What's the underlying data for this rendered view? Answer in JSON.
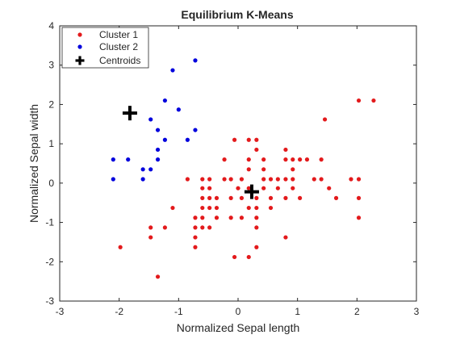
{
  "chart_data": {
    "type": "scatter",
    "title": "Equilibrium K-Means",
    "xlabel": "Normalized Sepal length",
    "ylabel": "Normalized Sepal width",
    "xlim": [
      -3,
      3
    ],
    "ylim": [
      -3,
      4
    ],
    "xticks": [
      -3,
      -2,
      -1,
      0,
      1,
      2,
      3
    ],
    "yticks": [
      -3,
      -2,
      -1,
      0,
      1,
      2,
      3,
      4
    ],
    "grid": false,
    "legend_position": "top-left",
    "series": [
      {
        "name": "Cluster 1",
        "color": "#e31a1c",
        "marker": "dot",
        "points": [
          [
            -1.98,
            -1.63
          ],
          [
            -1.35,
            -2.38
          ],
          [
            -1.47,
            -1.13
          ],
          [
            -1.47,
            -1.38
          ],
          [
            -1.23,
            -1.13
          ],
          [
            -1.1,
            -0.63
          ],
          [
            -0.85,
            0.1
          ],
          [
            -0.72,
            -0.88
          ],
          [
            -0.72,
            -1.13
          ],
          [
            -0.72,
            -1.38
          ],
          [
            -0.72,
            -1.63
          ],
          [
            -0.6,
            -0.38
          ],
          [
            -0.6,
            -0.63
          ],
          [
            -0.6,
            -0.88
          ],
          [
            -0.6,
            -1.13
          ],
          [
            -0.6,
            -0.13
          ],
          [
            -0.6,
            0.1
          ],
          [
            -0.48,
            -0.38
          ],
          [
            -0.48,
            -0.13
          ],
          [
            -0.48,
            0.1
          ],
          [
            -0.48,
            -0.63
          ],
          [
            -0.48,
            -1.13
          ],
          [
            -0.36,
            -0.38
          ],
          [
            -0.36,
            -0.63
          ],
          [
            -0.36,
            -0.88
          ],
          [
            -0.23,
            0.6
          ],
          [
            -0.23,
            0.1
          ],
          [
            -0.12,
            -0.38
          ],
          [
            -0.12,
            0.1
          ],
          [
            -0.12,
            -0.88
          ],
          [
            -0.06,
            -1.88
          ],
          [
            -0.06,
            1.1
          ],
          [
            0.0,
            -0.13
          ],
          [
            0.06,
            -0.38
          ],
          [
            0.06,
            -0.88
          ],
          [
            0.06,
            0.1
          ],
          [
            0.18,
            0.6
          ],
          [
            0.18,
            1.1
          ],
          [
            0.18,
            -0.13
          ],
          [
            0.18,
            -0.63
          ],
          [
            0.18,
            -1.88
          ],
          [
            0.18,
            0.35
          ],
          [
            0.31,
            -0.38
          ],
          [
            0.31,
            -0.63
          ],
          [
            0.31,
            -0.88
          ],
          [
            0.31,
            -1.13
          ],
          [
            0.31,
            0.85
          ],
          [
            0.31,
            1.1
          ],
          [
            0.31,
            -1.63
          ],
          [
            0.43,
            0.6
          ],
          [
            0.43,
            0.35
          ],
          [
            0.43,
            0.1
          ],
          [
            0.43,
            -0.13
          ],
          [
            0.55,
            -0.38
          ],
          [
            0.55,
            -0.63
          ],
          [
            0.55,
            0.1
          ],
          [
            0.67,
            0.1
          ],
          [
            0.67,
            -0.13
          ],
          [
            0.8,
            -0.38
          ],
          [
            0.8,
            0.6
          ],
          [
            0.8,
            0.85
          ],
          [
            0.8,
            0.1
          ],
          [
            0.8,
            -1.38
          ],
          [
            0.92,
            0.35
          ],
          [
            0.92,
            0.1
          ],
          [
            0.92,
            -0.13
          ],
          [
            0.92,
            0.6
          ],
          [
            1.04,
            -0.38
          ],
          [
            1.04,
            0.6
          ],
          [
            1.16,
            0.6
          ],
          [
            1.28,
            0.1
          ],
          [
            1.4,
            0.1
          ],
          [
            1.4,
            0.6
          ],
          [
            1.46,
            1.62
          ],
          [
            1.53,
            -0.13
          ],
          [
            1.65,
            -0.38
          ],
          [
            1.9,
            0.1
          ],
          [
            2.03,
            -0.38
          ],
          [
            2.03,
            0.1
          ],
          [
            2.03,
            -0.88
          ],
          [
            2.03,
            2.1
          ],
          [
            2.28,
            2.1
          ]
        ]
      },
      {
        "name": "Cluster 2",
        "color": "#0000dd",
        "marker": "dot",
        "points": [
          [
            -2.1,
            0.6
          ],
          [
            -2.1,
            0.1
          ],
          [
            -1.85,
            0.6
          ],
          [
            -1.6,
            0.35
          ],
          [
            -1.6,
            0.1
          ],
          [
            -1.47,
            0.35
          ],
          [
            -1.47,
            1.62
          ],
          [
            -1.35,
            0.6
          ],
          [
            -1.35,
            0.85
          ],
          [
            -1.35,
            1.35
          ],
          [
            -1.23,
            2.1
          ],
          [
            -1.23,
            1.1
          ],
          [
            -1.1,
            2.87
          ],
          [
            -1.0,
            1.87
          ],
          [
            -0.85,
            1.1
          ],
          [
            -0.72,
            3.12
          ],
          [
            -0.72,
            1.35
          ]
        ]
      },
      {
        "name": "Centroids",
        "color": "#000000",
        "marker": "plus",
        "points": [
          [
            -1.82,
            1.78
          ],
          [
            0.23,
            -0.22
          ]
        ]
      }
    ]
  }
}
